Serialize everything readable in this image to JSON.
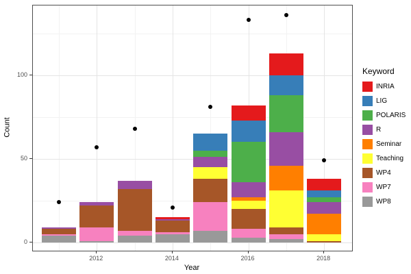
{
  "axes": {
    "y_title": "Count",
    "x_title": "Year"
  },
  "legend": {
    "title": "Keyword"
  },
  "chart_data": {
    "type": "bar",
    "subtype": "stacked-bar-with-points",
    "x": [
      2011,
      2012,
      2013,
      2014,
      2015,
      2016,
      2017,
      2018
    ],
    "xlabel": "Year",
    "ylabel": "Count",
    "x_tick_labels": [
      "2012",
      "2014",
      "2016",
      "2018"
    ],
    "x_tick_years": [
      2012,
      2014,
      2016,
      2018
    ],
    "y_tick_labels": [
      "0",
      "50",
      "100"
    ],
    "y_ticks": [
      0,
      50,
      100
    ],
    "y_minor_ticks": [
      25,
      75,
      125
    ],
    "ylim": [
      0,
      141.5
    ],
    "grid": "on",
    "legend_position": "right",
    "legend_title": "Keyword",
    "stack_order": "reverse-of-series-list",
    "series": [
      {
        "name": "INRIA",
        "color": "#E41A1C",
        "values": [
          0,
          0,
          0,
          1,
          0,
          9,
          13,
          7
        ]
      },
      {
        "name": "LIG",
        "color": "#377EB8",
        "values": [
          0,
          0,
          0,
          0,
          10,
          13,
          12,
          4
        ]
      },
      {
        "name": "POLARIS",
        "color": "#4DAF4A",
        "values": [
          0,
          0,
          0,
          0,
          4,
          24,
          22,
          3
        ]
      },
      {
        "name": "R",
        "color": "#984EA3",
        "values": [
          1,
          2,
          5,
          1,
          6,
          9,
          20,
          7
        ]
      },
      {
        "name": "Seminar",
        "color": "#FF7F00",
        "values": [
          0,
          0,
          0,
          0,
          0,
          2,
          15,
          12
        ]
      },
      {
        "name": "Teaching",
        "color": "#FFFF33",
        "values": [
          0,
          0,
          0,
          0,
          7,
          5,
          22,
          4
        ]
      },
      {
        "name": "WP4",
        "color": "#A65628",
        "values": [
          3,
          13,
          25,
          7,
          14,
          12,
          4,
          1
        ]
      },
      {
        "name": "WP7",
        "color": "#F781BF",
        "values": [
          1,
          8,
          3,
          1,
          17,
          5,
          3,
          0
        ]
      },
      {
        "name": "WP8",
        "color": "#999999",
        "values": [
          4,
          1,
          4,
          5,
          7,
          3,
          2,
          0
        ]
      }
    ],
    "bar_totals": [
      9,
      24,
      37,
      15,
      65,
      82,
      113,
      38
    ],
    "points": {
      "name": "yearly-dot-values",
      "color": "#000000",
      "values": [
        24,
        57,
        68,
        21,
        81,
        133,
        136,
        49
      ]
    }
  },
  "style_colors": {
    "panel_border": "#4d4d4d",
    "grid_major": "#e4e4e4",
    "grid_minor": "#f2f2f2",
    "tick_text": "#4d4d4d",
    "point": "#000000"
  }
}
